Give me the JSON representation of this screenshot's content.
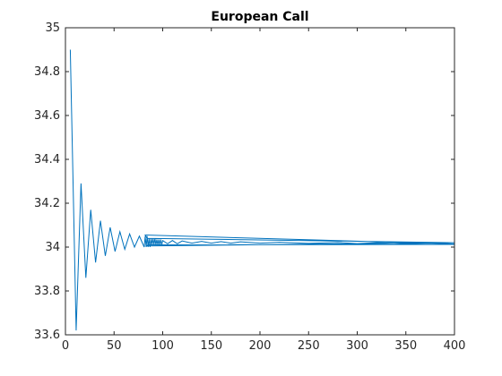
{
  "chart_data": {
    "type": "line",
    "title": "European Call",
    "xlabel": "",
    "ylabel": "",
    "xlim": [
      0,
      400
    ],
    "ylim": [
      33.6,
      35
    ],
    "xticks": [
      0,
      50,
      100,
      150,
      200,
      250,
      300,
      350,
      400
    ],
    "yticks": [
      33.6,
      33.8,
      34,
      34.2,
      34.4,
      34.6,
      34.8,
      35
    ],
    "xtick_labels": [
      "0",
      "50",
      "100",
      "150",
      "200",
      "250",
      "300",
      "350",
      "400"
    ],
    "ytick_labels": [
      "33.6",
      "33.8",
      "34",
      "34.2",
      "34.4",
      "34.6",
      "34.8",
      "35"
    ],
    "grid": false,
    "box": true,
    "series": [
      {
        "color": "#0072BD",
        "x": [
          5,
          11,
          16,
          21,
          26,
          31,
          36,
          41,
          46,
          51,
          56,
          61,
          66,
          71,
          76,
          81,
          82,
          83,
          84,
          85,
          86,
          87,
          88,
          89,
          90,
          91,
          92,
          93,
          94,
          95,
          96,
          97,
          98,
          99,
          100,
          105,
          110,
          115,
          120,
          130,
          140,
          150,
          160,
          170,
          180,
          200,
          220,
          250,
          280,
          300,
          320,
          350,
          380,
          400,
          82,
          84,
          400,
          83,
          85,
          400
        ],
        "y": [
          34.9,
          33.62,
          34.29,
          33.86,
          34.17,
          33.93,
          34.12,
          33.96,
          34.09,
          33.98,
          34.07,
          33.99,
          34.06,
          34.0,
          34.05,
          34.0,
          34.05,
          34.0,
          34.05,
          34.0,
          34.04,
          34.0,
          34.04,
          34.01,
          34.04,
          34.01,
          34.04,
          34.01,
          34.035,
          34.01,
          34.035,
          34.01,
          34.035,
          34.01,
          34.03,
          34.015,
          34.03,
          34.015,
          34.028,
          34.018,
          34.026,
          34.018,
          34.025,
          34.018,
          34.024,
          34.018,
          34.022,
          34.017,
          34.021,
          34.016,
          34.02,
          34.015,
          34.018,
          34.014,
          34.055,
          34.04,
          34.02,
          34.005,
          34.01,
          34.012
        ]
      }
    ]
  }
}
